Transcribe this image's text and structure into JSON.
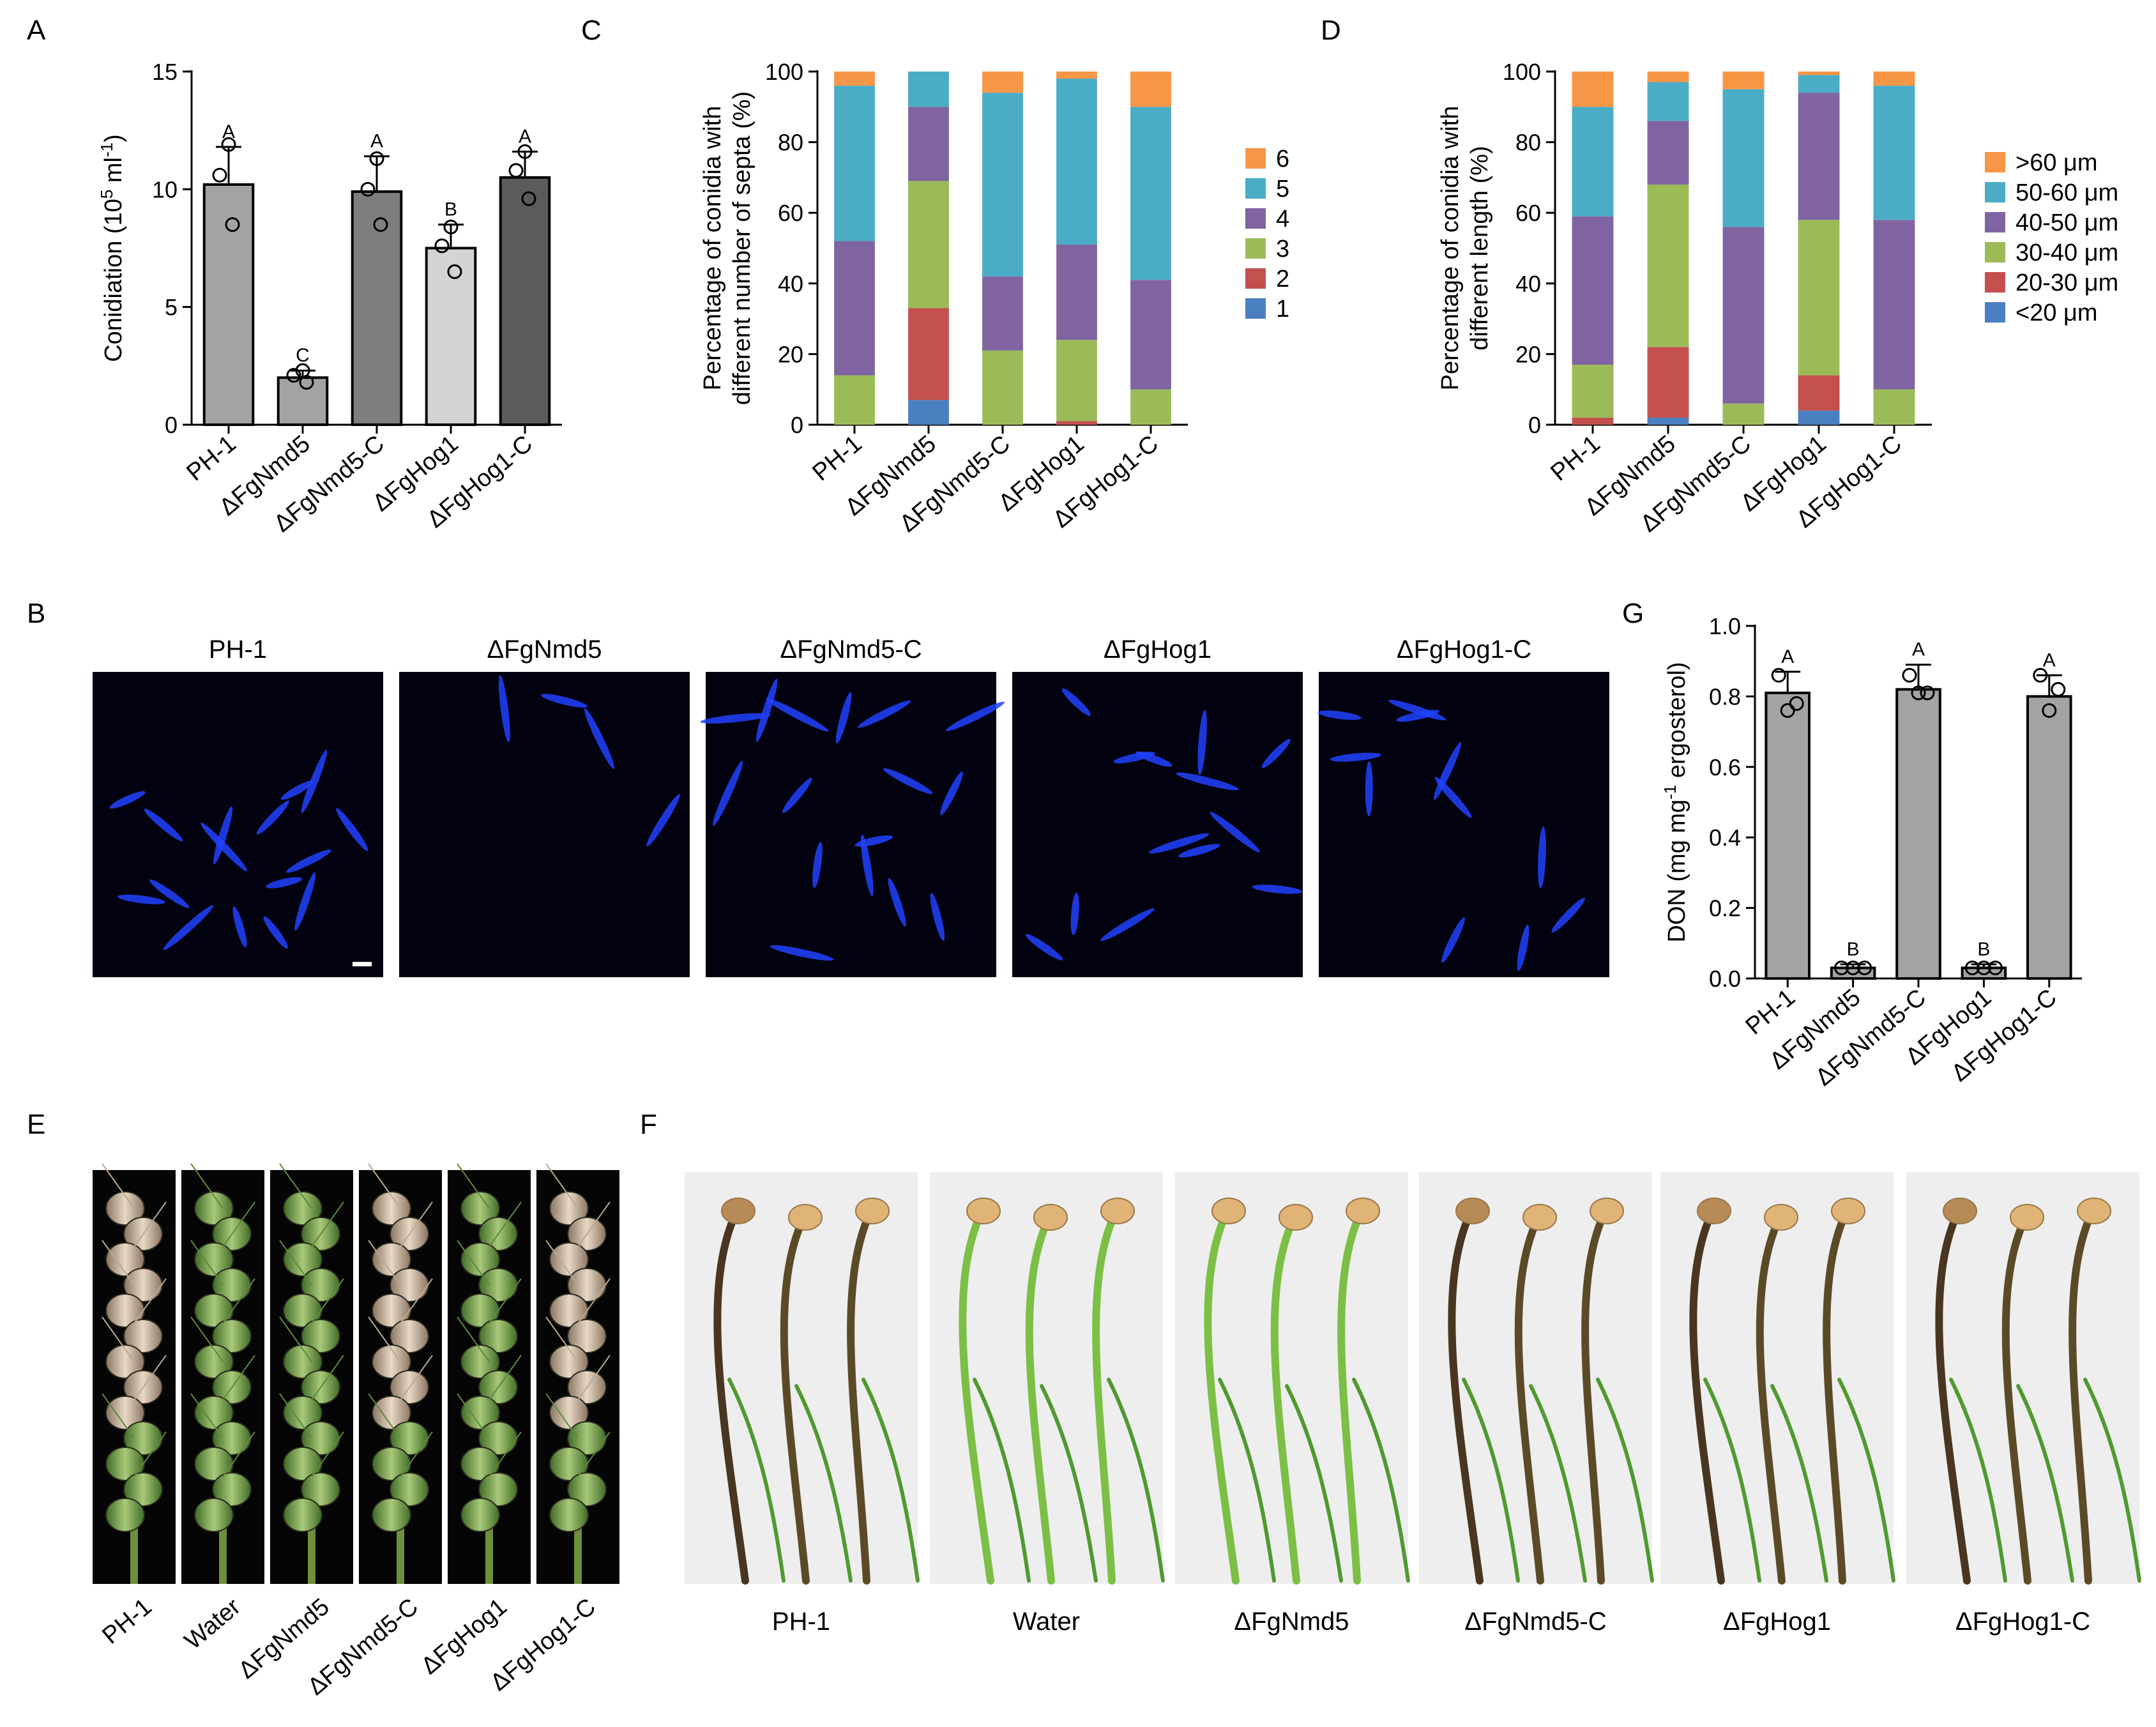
{
  "panel_labels": {
    "A": "A",
    "B": "B",
    "C": "C",
    "D": "D",
    "E": "E",
    "F": "F",
    "G": "G"
  },
  "chart_data": [
    {
      "id": "A",
      "type": "bar",
      "categories": [
        "PH-1",
        "ΔFgNmd5",
        "ΔFgNmd5-C",
        "ΔFgHog1",
        "ΔFgHog1-C"
      ],
      "values": [
        10.2,
        2.0,
        9.9,
        7.5,
        10.5
      ],
      "errors": [
        1.6,
        0.3,
        1.5,
        1.0,
        1.1
      ],
      "points": [
        [
          11.9,
          10.6,
          8.5
        ],
        [
          2.3,
          2.1,
          1.8
        ],
        [
          11.3,
          10.0,
          8.5
        ],
        [
          8.4,
          7.6,
          6.5
        ],
        [
          11.6,
          10.8,
          9.6
        ]
      ],
      "letters": [
        "A",
        "C",
        "A",
        "B",
        "A"
      ],
      "colors": [
        "#a3a3a5",
        "#a3a3a5",
        "#7e7e80",
        "#d4d4d6",
        "#5b5b5d"
      ],
      "ylabel_pre": "Conidiation (10",
      "ylabel_sup1": "5",
      "ylabel_mid": " ml",
      "ylabel_sup2": "-1",
      "ylabel_post": ")",
      "ylim": [
        0,
        15
      ],
      "yticks": [
        "0",
        "5",
        "10",
        "15"
      ]
    },
    {
      "id": "C",
      "type": "bar",
      "stacked": true,
      "categories": [
        "PH-1",
        "ΔFgNmd5",
        "ΔFgNmd5-C",
        "ΔFgHog1",
        "ΔFgHog1-C"
      ],
      "ylabel_line1": "Percentage of conidia with",
      "ylabel_line2": "different number of septa (%)",
      "ylim": [
        0,
        100
      ],
      "yticks": [
        "0",
        "20",
        "40",
        "60",
        "80",
        "100"
      ],
      "series": [
        {
          "name": "1",
          "color": "#4a7fc0",
          "values": [
            0,
            7,
            0,
            0,
            0
          ]
        },
        {
          "name": "2",
          "color": "#c4504e",
          "values": [
            0,
            26,
            0,
            1,
            0
          ]
        },
        {
          "name": "3",
          "color": "#9bbb59",
          "values": [
            14,
            36,
            21,
            23,
            10
          ]
        },
        {
          "name": "4",
          "color": "#8064a2",
          "values": [
            38,
            21,
            21,
            27,
            31
          ]
        },
        {
          "name": "5",
          "color": "#4bacc6",
          "values": [
            44,
            10,
            52,
            47,
            49
          ]
        },
        {
          "name": "6",
          "color": "#f79646",
          "values": [
            4,
            0,
            6,
            2,
            10
          ]
        }
      ]
    },
    {
      "id": "D",
      "type": "bar",
      "stacked": true,
      "categories": [
        "PH-1",
        "ΔFgNmd5",
        "ΔFgNmd5-C",
        "ΔFgHog1",
        "ΔFgHog1-C"
      ],
      "ylabel_line1": "Percentage of conidia with",
      "ylabel_line2": "different length (%)",
      "ylim": [
        0,
        100
      ],
      "yticks": [
        "0",
        "20",
        "40",
        "60",
        "80",
        "100"
      ],
      "series": [
        {
          "name": "<20 μm",
          "color": "#4a7fc0",
          "values": [
            0,
            2,
            0,
            4,
            0
          ]
        },
        {
          "name": "20-30 μm",
          "color": "#c4504e",
          "values": [
            2,
            20,
            0,
            10,
            0
          ]
        },
        {
          "name": "30-40 μm",
          "color": "#9bbb59",
          "values": [
            15,
            46,
            6,
            44,
            10
          ]
        },
        {
          "name": "40-50 μm",
          "color": "#8064a2",
          "values": [
            42,
            18,
            50,
            36,
            48
          ]
        },
        {
          "name": "50-60 μm",
          "color": "#4bacc6",
          "values": [
            31,
            11,
            39,
            5,
            38
          ]
        },
        {
          "name": ">60 μm",
          "color": "#f79646",
          "values": [
            10,
            3,
            5,
            1,
            4
          ]
        }
      ]
    },
    {
      "id": "G",
      "type": "bar",
      "categories": [
        "PH-1",
        "ΔFgNmd5",
        "ΔFgNmd5-C",
        "ΔFgHog1",
        "ΔFgHog1-C"
      ],
      "values": [
        0.81,
        0.03,
        0.82,
        0.03,
        0.8
      ],
      "errors": [
        0.06,
        0.01,
        0.07,
        0.01,
        0.06
      ],
      "points": [
        [
          0.86,
          0.78,
          0.76
        ],
        [
          0.03,
          0.03,
          0.03
        ],
        [
          0.86,
          0.81,
          0.81
        ],
        [
          0.03,
          0.03,
          0.03
        ],
        [
          0.86,
          0.82,
          0.76
        ]
      ],
      "letters": [
        "A",
        "B",
        "A",
        "B",
        "A"
      ],
      "colors": [
        "#a3a3a5",
        "#a3a3a5",
        "#a3a3a5",
        "#a3a3a5",
        "#a3a3a5"
      ],
      "ylabel_pre": "DON (mg mg",
      "ylabel_sup1": "-1",
      "ylabel_mid": " ergosterol)",
      "ylabel_sup2": "",
      "ylabel_post": "",
      "ylim": [
        0,
        1.0
      ],
      "yticks": [
        "0.0",
        "0.2",
        "0.4",
        "0.6",
        "0.8",
        "1.0"
      ]
    }
  ],
  "panelB": {
    "titles": [
      "PH-1",
      "ΔFgNmd5",
      "ΔFgNmd5-C",
      "ΔFgHog1",
      "ΔFgHog1-C"
    ]
  },
  "panelE": {
    "labels": [
      "PH-1",
      "Water",
      "ΔFgNmd5",
      "ΔFgNmd5-C",
      "ΔFgHog1",
      "ΔFgHog1-C"
    ],
    "infected": [
      true,
      false,
      false,
      true,
      false,
      true
    ]
  },
  "panelF": {
    "labels": [
      "PH-1",
      "Water",
      "ΔFgNmd5",
      "ΔFgNmd5-C",
      "ΔFgHog1",
      "ΔFgHog1-C"
    ],
    "infected": [
      true,
      false,
      false,
      true,
      true,
      true
    ]
  }
}
